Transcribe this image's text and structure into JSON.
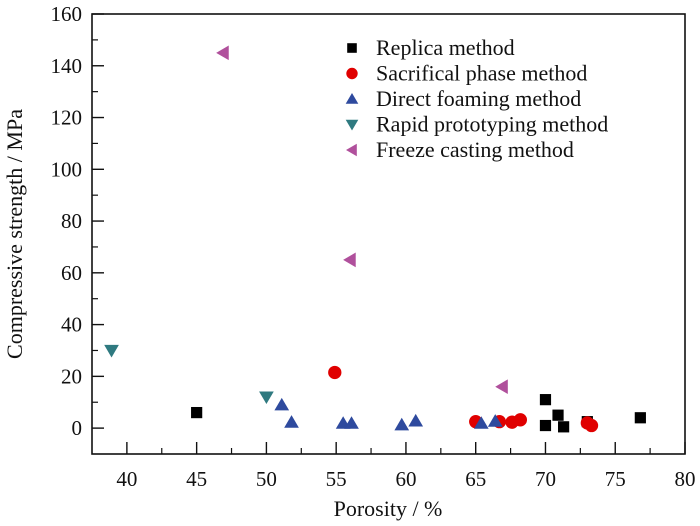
{
  "chart_data": {
    "type": "scatter",
    "title": "",
    "xlabel": "Porosity / %",
    "ylabel": "Compressive strength / MPa",
    "xlim": [
      37.5,
      80
    ],
    "ylim": [
      -10,
      160
    ],
    "xticks": [
      40,
      45,
      50,
      55,
      60,
      65,
      70,
      75,
      80
    ],
    "xtick_labels": [
      "40",
      "45",
      "50",
      "55",
      "60",
      "65",
      "70",
      "75",
      "80"
    ],
    "xminor_ticks": [
      42.5,
      47.5,
      52.5,
      57.5,
      62.5,
      67.5,
      72.5,
      77.5
    ],
    "yticks": [
      0,
      20,
      40,
      60,
      80,
      100,
      120,
      140,
      160
    ],
    "ytick_labels": [
      "0",
      "20",
      "40",
      "60",
      "80",
      "100",
      "120",
      "140",
      "160"
    ],
    "yminor_ticks": [
      10,
      30,
      50,
      70,
      90,
      110,
      130,
      150
    ],
    "grid": false,
    "legend_position": "top-right",
    "series": [
      {
        "name": "Replica method",
        "marker": "square",
        "color": "#000000",
        "points": [
          [
            45,
            6
          ],
          [
            70,
            11
          ],
          [
            70,
            1
          ],
          [
            70.9,
            5
          ],
          [
            71.3,
            0.5
          ],
          [
            73,
            2.5
          ],
          [
            76.8,
            4
          ]
        ]
      },
      {
        "name": "Sacrifical phase method",
        "marker": "circle",
        "color": "#e00000",
        "points": [
          [
            54.9,
            21.5
          ],
          [
            65,
            2.5
          ],
          [
            66.7,
            2.5
          ],
          [
            67.6,
            2.3
          ],
          [
            68.2,
            3.2
          ],
          [
            73,
            2
          ],
          [
            73.3,
            1
          ]
        ]
      },
      {
        "name": "Direct foaming method",
        "marker": "triangle-up",
        "color": "#2e4a9e",
        "points": [
          [
            51.1,
            9
          ],
          [
            51.8,
            2.3
          ],
          [
            55.5,
            1.9
          ],
          [
            56.1,
            1.9
          ],
          [
            59.7,
            1.3
          ],
          [
            60.7,
            2.8
          ],
          [
            65.4,
            1.9
          ],
          [
            66.4,
            2.7
          ]
        ]
      },
      {
        "name": "Rapid prototyping method",
        "marker": "triangle-down",
        "color": "#2f7a80",
        "points": [
          [
            38.9,
            30
          ],
          [
            50,
            12
          ]
        ]
      },
      {
        "name": "Freeze casting method",
        "marker": "triangle-left",
        "color": "#b0509c",
        "points": [
          [
            46.9,
            145
          ],
          [
            56,
            65
          ],
          [
            66.9,
            16
          ]
        ]
      }
    ]
  }
}
